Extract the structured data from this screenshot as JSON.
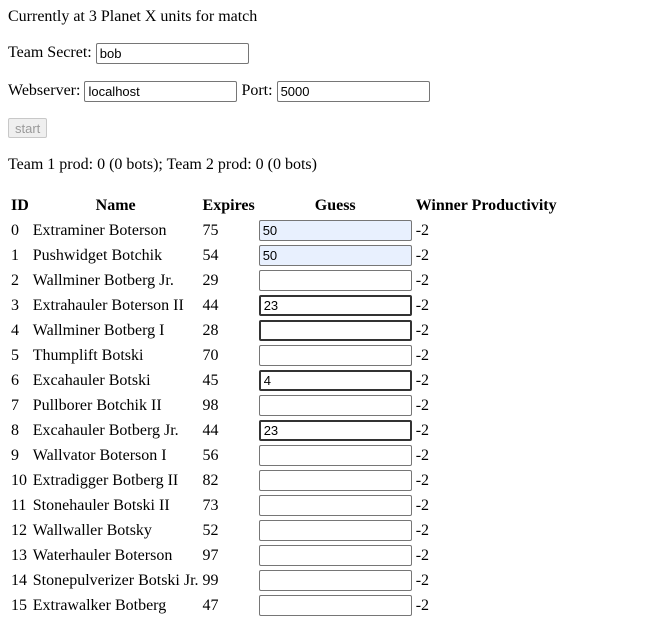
{
  "status_text": "Currently at 3 Planet X units for match",
  "team_secret": {
    "label": "Team Secret:",
    "value": "bob"
  },
  "webserver": {
    "label": "Webserver:",
    "value": "localhost"
  },
  "port": {
    "label": "Port:",
    "value": "5000"
  },
  "start_label": "start",
  "prod_line": "Team 1 prod: 0 (0 bots); Team 2 prod: 0 (0 bots)",
  "table": {
    "headers": [
      "ID",
      "Name",
      "Expires",
      "Guess",
      "Winner Productivity"
    ],
    "rows": [
      {
        "id": "0",
        "name": "Extraminer Boterson",
        "expires": "75",
        "guess": "50",
        "winner": "-2"
      },
      {
        "id": "1",
        "name": "Pushwidget Botchik",
        "expires": "54",
        "guess": "50",
        "winner": "-2"
      },
      {
        "id": "2",
        "name": "Wallminer Botberg Jr.",
        "expires": "29",
        "guess": "",
        "winner": "-2"
      },
      {
        "id": "3",
        "name": "Extrahauler Boterson II",
        "expires": "44",
        "guess": "23",
        "winner": "-2"
      },
      {
        "id": "4",
        "name": "Wallminer Botberg I",
        "expires": "28",
        "guess": "",
        "winner": "-2"
      },
      {
        "id": "5",
        "name": "Thumplift Botski",
        "expires": "70",
        "guess": "",
        "winner": "-2"
      },
      {
        "id": "6",
        "name": "Excahauler Botski",
        "expires": "45",
        "guess": "4",
        "winner": "-2"
      },
      {
        "id": "7",
        "name": "Pullborer Botchik II",
        "expires": "98",
        "guess": "",
        "winner": "-2"
      },
      {
        "id": "8",
        "name": "Excahauler Botberg Jr.",
        "expires": "44",
        "guess": "23",
        "winner": "-2"
      },
      {
        "id": "9",
        "name": "Wallvator Boterson I",
        "expires": "56",
        "guess": "",
        "winner": "-2"
      },
      {
        "id": "10",
        "name": "Extradigger Botberg II",
        "expires": "82",
        "guess": "",
        "winner": "-2"
      },
      {
        "id": "11",
        "name": "Stonehauler Botski II",
        "expires": "73",
        "guess": "",
        "winner": "-2"
      },
      {
        "id": "12",
        "name": "Wallwaller Botsky",
        "expires": "52",
        "guess": "",
        "winner": "-2"
      },
      {
        "id": "13",
        "name": "Waterhauler Boterson",
        "expires": "97",
        "guess": "",
        "winner": "-2"
      },
      {
        "id": "14",
        "name": "Stonepulverizer Botski Jr.",
        "expires": "99",
        "guess": "",
        "winner": "-2"
      },
      {
        "id": "15",
        "name": "Extrawalker Botberg",
        "expires": "47",
        "guess": "",
        "winner": "-2"
      }
    ]
  }
}
